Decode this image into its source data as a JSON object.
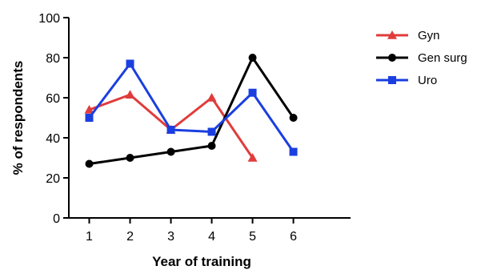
{
  "chart_data": {
    "type": "line",
    "title": "",
    "xlabel": "Year of training",
    "ylabel": "% of respondents",
    "xlim": [
      0.5,
      7.4
    ],
    "ylim": [
      0,
      100
    ],
    "x_ticks": [
      1,
      2,
      3,
      4,
      5,
      6
    ],
    "y_ticks": [
      0,
      20,
      40,
      60,
      80,
      100
    ],
    "grid": false,
    "legend_position": "top-right",
    "series": [
      {
        "name": "Gyn",
        "color": "#e03c3c",
        "marker": "triangle",
        "x": [
          1,
          2,
          3,
          4,
          5
        ],
        "values": [
          54,
          61.5,
          44,
          60,
          30
        ]
      },
      {
        "name": "Gen surg",
        "color": "#000000",
        "marker": "circle",
        "x": [
          1,
          2,
          3,
          4,
          5,
          6
        ],
        "values": [
          27,
          30,
          33,
          36,
          80,
          50
        ]
      },
      {
        "name": "Uro",
        "color": "#1a3fe0",
        "marker": "square",
        "x": [
          1,
          2,
          3,
          4,
          5,
          6
        ],
        "values": [
          50,
          77,
          44,
          43,
          62.5,
          33
        ]
      }
    ]
  }
}
